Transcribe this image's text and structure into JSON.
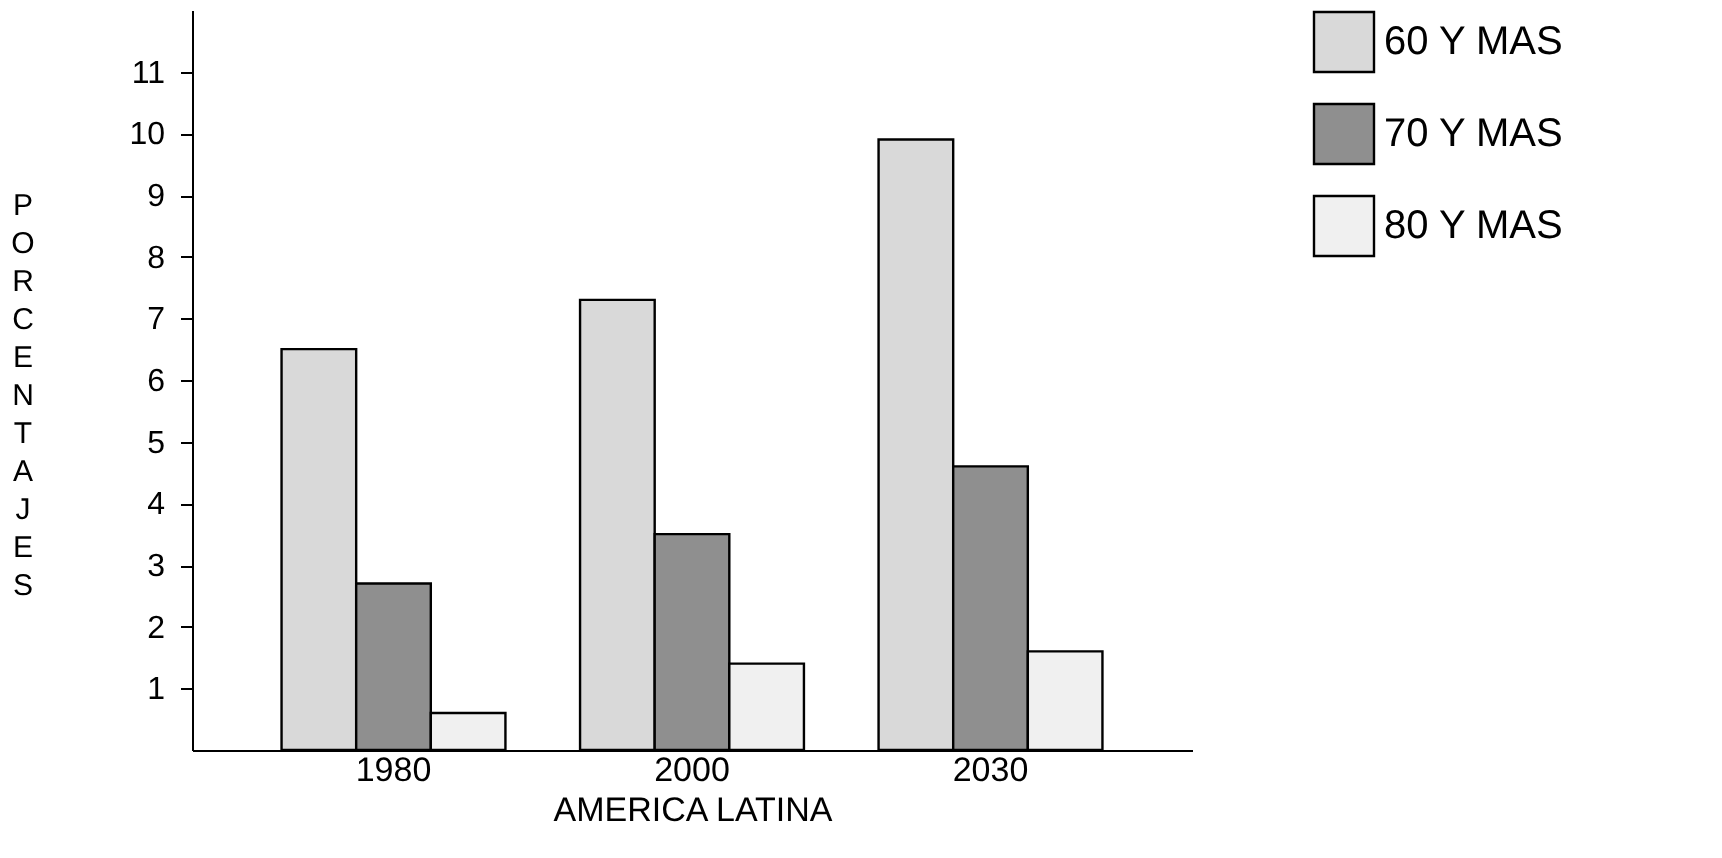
{
  "chart_data": {
    "type": "bar",
    "xlabel": "AMERICA LATINA",
    "ylabel": "PORCENTAJES",
    "categories": [
      "1980",
      "2000",
      "2030"
    ],
    "series": [
      {
        "name": "60 Y MAS",
        "color": "#d9d9d9",
        "values": [
          6.5,
          7.3,
          9.9
        ]
      },
      {
        "name": "70 Y MAS",
        "color": "#8f8f8f",
        "values": [
          2.7,
          3.5,
          4.6
        ]
      },
      {
        "name": "80 Y MAS",
        "color": "#f0f0f0",
        "values": [
          0.6,
          1.4,
          1.6
        ]
      }
    ],
    "ylim": [
      0,
      12
    ],
    "yticks": [
      1,
      2,
      3,
      4,
      5,
      6,
      7,
      8,
      9,
      10,
      11
    ],
    "grid": false,
    "legend": "top right"
  }
}
